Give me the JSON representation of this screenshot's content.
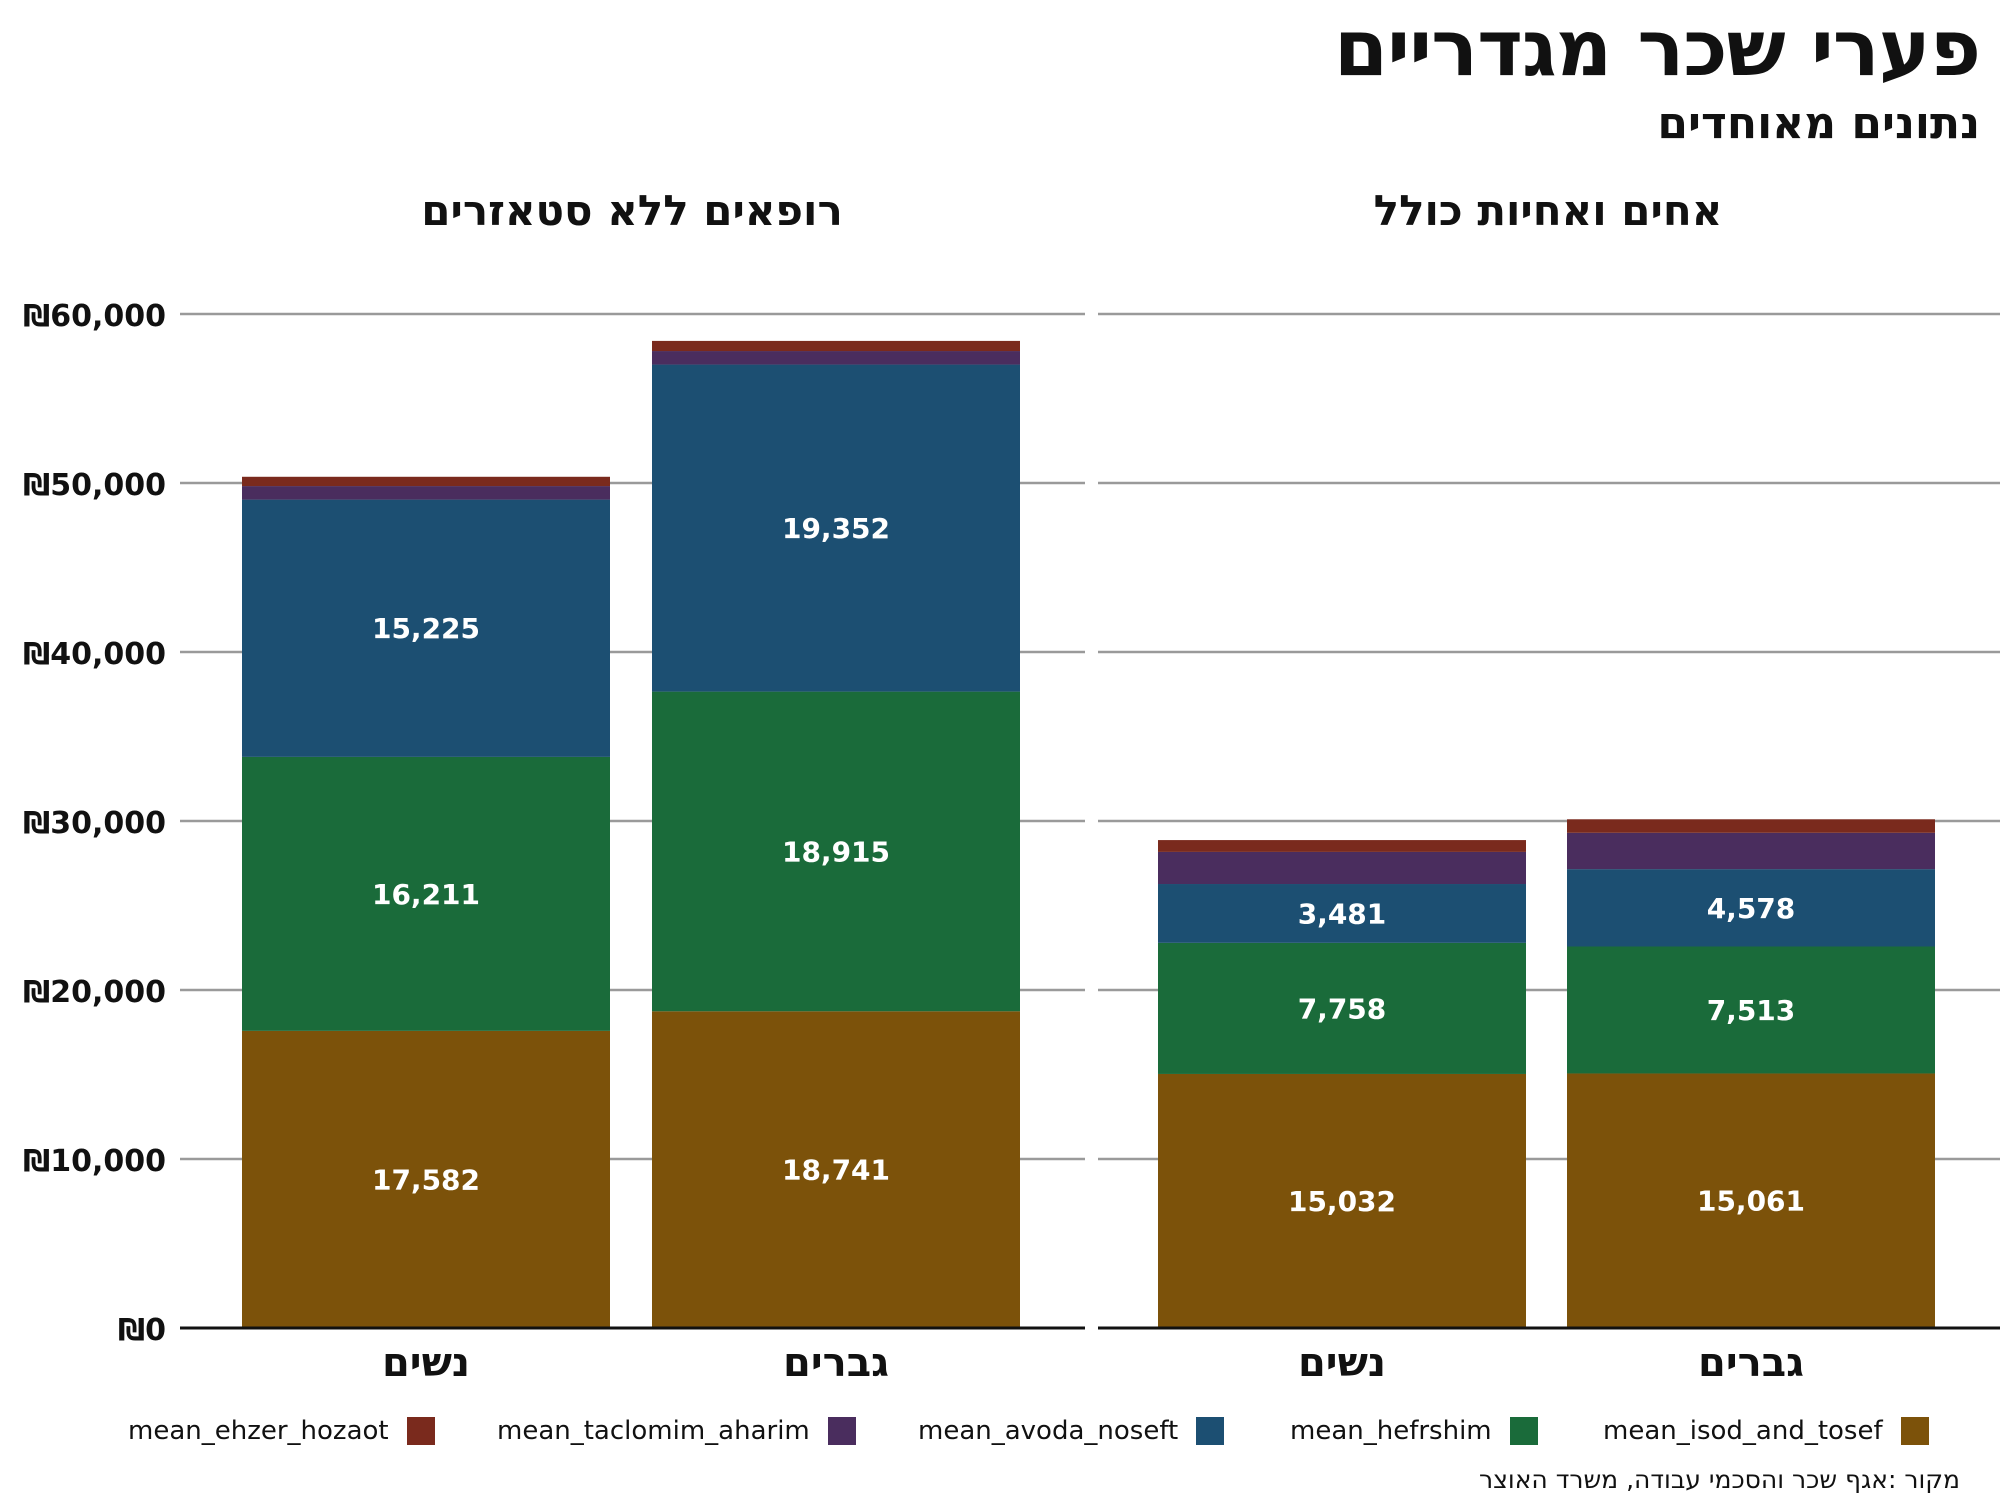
{
  "title": "פערי שכר מגדריים",
  "subtitle": "נתונים מאוחדים",
  "source": "מקור :אגף שכר והסכמי עבודה, משרד האוצר",
  "chart_data": {
    "type": "bar",
    "stacked": true,
    "grid": true,
    "legend_position": "bottom",
    "y_ticks": [
      "₪0",
      "₪10,000",
      "₪20,000",
      "₪30,000",
      "₪40,000",
      "₪50,000",
      "₪60,000"
    ],
    "ylim": [
      0,
      60000
    ],
    "legend": [
      {
        "name": "mean_ehzer_hozaot",
        "color": "#7a2a1d"
      },
      {
        "name": "mean_taclomim_aharim",
        "color": "#4a2d5e"
      },
      {
        "name": "mean_avoda_noseft",
        "color": "#1c4f72"
      },
      {
        "name": "mean_hefrshim",
        "color": "#1a6b3a"
      },
      {
        "name": "mean_isod_and_tosef",
        "color": "#7c520a"
      }
    ],
    "panels": [
      {
        "title": "רופאים ללא סטאזרים",
        "categories": [
          "נשים",
          "גברים"
        ],
        "series": [
          {
            "name": "mean_isod_and_tosef",
            "color": "#7c520a",
            "values": [
              17582,
              18741
            ],
            "labels": [
              "17,582",
              "18,741"
            ]
          },
          {
            "name": "mean_hefrshim",
            "color": "#1a6b3a",
            "values": [
              16211,
              18915
            ],
            "labels": [
              "16,211",
              "18,915"
            ]
          },
          {
            "name": "mean_avoda_noseft",
            "color": "#1c4f72",
            "values": [
              15225,
              19352
            ],
            "labels": [
              "15,225",
              "19,352"
            ]
          },
          {
            "name": "mean_taclomim_aharim",
            "color": "#4a2d5e",
            "values": [
              800,
              800
            ],
            "labels": [
              "",
              ""
            ]
          },
          {
            "name": "mean_ehzer_hozaot",
            "color": "#7a2a1d",
            "values": [
              550,
              600
            ],
            "labels": [
              "",
              ""
            ]
          }
        ]
      },
      {
        "title": "אחים ואחיות כולל",
        "categories": [
          "נשים",
          "גברים"
        ],
        "series": [
          {
            "name": "mean_isod_and_tosef",
            "color": "#7c520a",
            "values": [
              15032,
              15061
            ],
            "labels": [
              "15,032",
              "15,061"
            ]
          },
          {
            "name": "mean_hefrshim",
            "color": "#1a6b3a",
            "values": [
              7758,
              7513
            ],
            "labels": [
              "7,758",
              "7,513"
            ]
          },
          {
            "name": "mean_avoda_noseft",
            "color": "#1c4f72",
            "values": [
              3481,
              4578
            ],
            "labels": [
              "3,481",
              "4,578"
            ]
          },
          {
            "name": "mean_taclomim_aharim",
            "color": "#4a2d5e",
            "values": [
              1900,
              2150
            ],
            "labels": [
              "",
              ""
            ]
          },
          {
            "name": "mean_ehzer_hozaot",
            "color": "#7a2a1d",
            "values": [
              700,
              800
            ],
            "labels": [
              "",
              ""
            ]
          }
        ]
      }
    ]
  }
}
